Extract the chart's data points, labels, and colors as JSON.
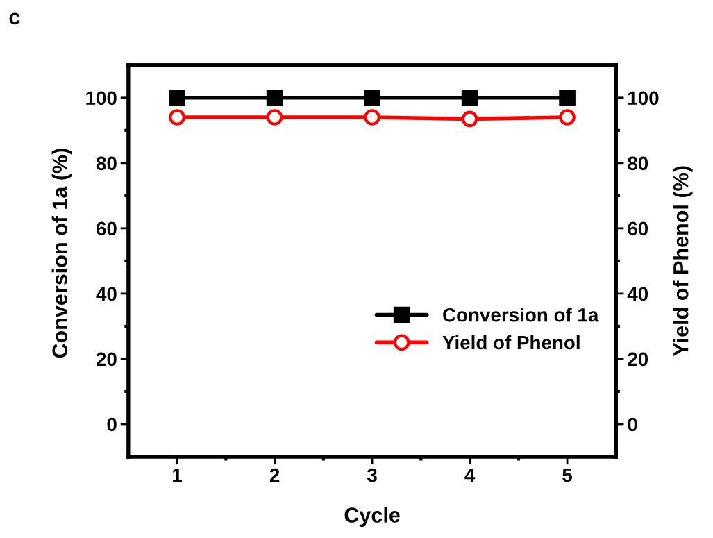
{
  "chart_data": {
    "type": "line",
    "xlabel": "Cycle",
    "ylabel": "Conversion of 1a (%)",
    "y2label": "Yield of Phenol (%)",
    "annotations": [
      "c"
    ],
    "x": [
      1,
      2,
      3,
      4,
      5
    ],
    "series": [
      {
        "name": "Conversion of 1a",
        "color": "#000000",
        "marker": "square",
        "values": [
          100,
          100,
          100,
          100,
          100
        ]
      },
      {
        "name": "Yield of Phenol",
        "color": "#ff0000",
        "marker": "circle",
        "axis": "y2",
        "values": [
          94,
          94,
          94,
          93.5,
          94
        ]
      }
    ],
    "xlim": [
      0.5,
      5.5
    ],
    "xticks": [
      1,
      2,
      3,
      4,
      5
    ],
    "ylim": [
      -10,
      110
    ],
    "yticks": [
      0,
      20,
      40,
      60,
      80,
      100
    ],
    "y2lim": [
      -10,
      110
    ],
    "y2ticks": [
      0,
      20,
      40,
      60,
      80,
      100
    ],
    "legend": "bottom right",
    "grid": false,
    "line_style": "solid"
  }
}
